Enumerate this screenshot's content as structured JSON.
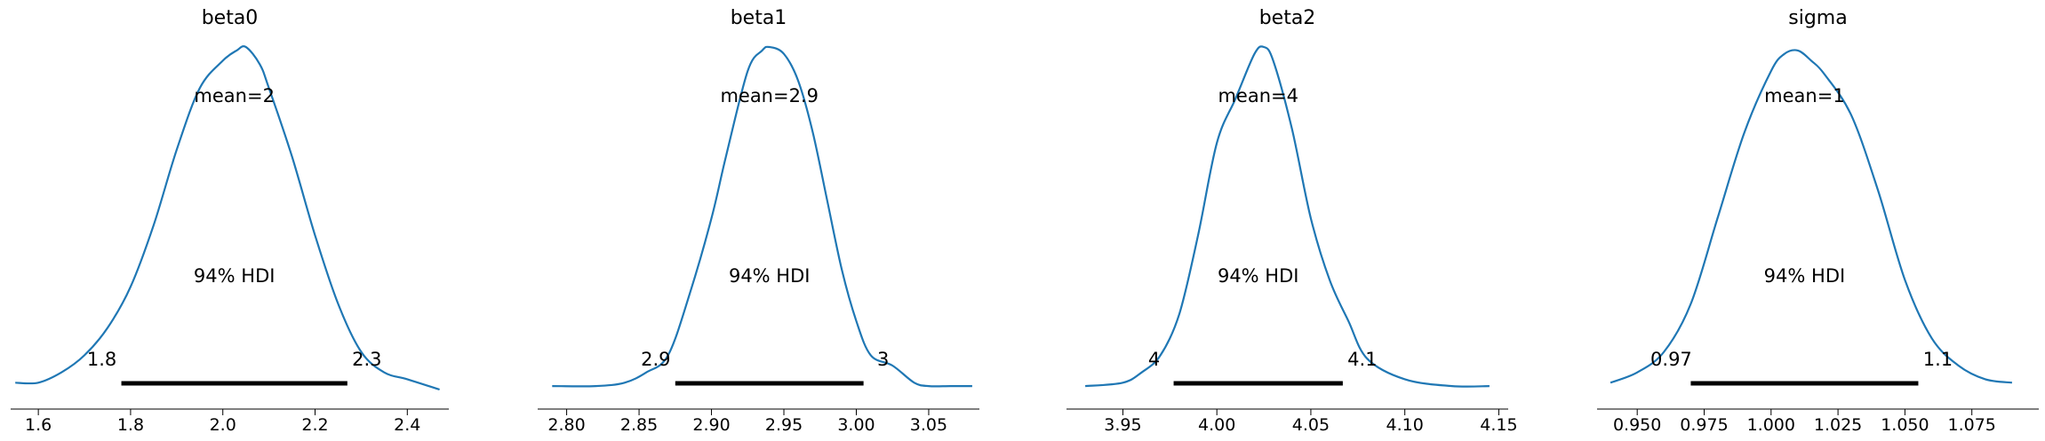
{
  "chart_data": [
    {
      "type": "line",
      "title": "beta0",
      "xlim": [
        1.54,
        2.49
      ],
      "xticks": [
        1.6,
        1.8,
        2.0,
        2.2,
        2.4
      ],
      "xtick_labels": [
        "1.6",
        "1.8",
        "2.0",
        "2.2",
        "2.4"
      ],
      "mean_label": "mean=2",
      "hdi_label": "94% HDI",
      "hdi": [
        1.78,
        2.27
      ],
      "hdi_low_label": "1.8",
      "hdi_high_label": "2.3",
      "series": [
        {
          "x": [
            1.55,
            1.6,
            1.65,
            1.7,
            1.75,
            1.8,
            1.85,
            1.9,
            1.95,
            2.0,
            2.03,
            2.05,
            2.08,
            2.1,
            2.15,
            2.2,
            2.25,
            2.3,
            2.35,
            2.4,
            2.47
          ],
          "y": [
            0.02,
            0.02,
            0.05,
            0.1,
            0.18,
            0.3,
            0.48,
            0.7,
            0.88,
            0.96,
            0.99,
            1.0,
            0.95,
            0.88,
            0.68,
            0.45,
            0.25,
            0.11,
            0.05,
            0.03,
            0.0
          ]
        }
      ]
    },
    {
      "type": "line",
      "title": "beta1",
      "xlim": [
        2.78,
        3.085
      ],
      "xticks": [
        2.8,
        2.85,
        2.9,
        2.95,
        3.0,
        3.05
      ],
      "xtick_labels": [
        "2.80",
        "2.85",
        "2.90",
        "2.95",
        "3.00",
        "3.05"
      ],
      "mean_label": "mean=2.9",
      "hdi_label": "94% HDI",
      "hdi": [
        2.875,
        3.005
      ],
      "hdi_low_label": "2.9",
      "hdi_high_label": "3",
      "series": [
        {
          "x": [
            2.79,
            2.82,
            2.84,
            2.855,
            2.87,
            2.885,
            2.9,
            2.91,
            2.925,
            2.935,
            2.94,
            2.95,
            2.96,
            2.97,
            2.98,
            2.99,
            3.0,
            3.01,
            3.025,
            3.04,
            3.05,
            3.065,
            3.08
          ],
          "y": [
            0.01,
            0.01,
            0.02,
            0.05,
            0.1,
            0.28,
            0.5,
            0.68,
            0.93,
            0.99,
            1.0,
            0.98,
            0.9,
            0.75,
            0.55,
            0.35,
            0.2,
            0.1,
            0.07,
            0.02,
            0.01,
            0.01,
            0.01
          ]
        }
      ]
    },
    {
      "type": "line",
      "title": "beta2",
      "xlim": [
        3.92,
        4.155
      ],
      "xticks": [
        3.95,
        4.0,
        4.05,
        4.1,
        4.15
      ],
      "xtick_labels": [
        "3.95",
        "4.00",
        "4.05",
        "4.10",
        "4.15"
      ],
      "mean_label": "mean=4",
      "hdi_label": "94% HDI",
      "hdi": [
        3.977,
        4.067
      ],
      "hdi_low_label": "4",
      "hdi_high_label": "4.1",
      "series": [
        {
          "x": [
            3.93,
            3.95,
            3.96,
            3.97,
            3.98,
            3.99,
            4.0,
            4.01,
            4.02,
            4.025,
            4.03,
            4.04,
            4.05,
            4.06,
            4.07,
            4.08,
            4.1,
            4.125,
            4.145
          ],
          "y": [
            0.01,
            0.02,
            0.05,
            0.1,
            0.22,
            0.45,
            0.72,
            0.85,
            0.98,
            1.0,
            0.96,
            0.76,
            0.5,
            0.32,
            0.2,
            0.09,
            0.03,
            0.01,
            0.01
          ]
        }
      ]
    },
    {
      "type": "line",
      "title": "sigma",
      "xlim": [
        0.935,
        1.1
      ],
      "xticks": [
        0.95,
        0.975,
        1.0,
        1.025,
        1.05,
        1.075
      ],
      "xtick_labels": [
        "0.950",
        "0.975",
        "1.000",
        "1.025",
        "1.050",
        "1.075"
      ],
      "mean_label": "mean=1",
      "hdi_label": "94% HDI",
      "hdi": [
        0.97,
        1.055
      ],
      "hdi_low_label": "0.97",
      "hdi_high_label": "1.1",
      "series": [
        {
          "x": [
            0.94,
            0.95,
            0.96,
            0.97,
            0.98,
            0.99,
            1.0,
            1.005,
            1.01,
            1.015,
            1.02,
            1.03,
            1.04,
            1.05,
            1.06,
            1.07,
            1.08,
            1.09
          ],
          "y": [
            0.02,
            0.05,
            0.11,
            0.25,
            0.5,
            0.75,
            0.93,
            0.98,
            0.99,
            0.96,
            0.92,
            0.8,
            0.58,
            0.32,
            0.15,
            0.07,
            0.03,
            0.02
          ]
        }
      ]
    }
  ],
  "colors": {
    "line": "#1f77b4",
    "hdi_bar": "#000000",
    "axis": "#000000"
  }
}
